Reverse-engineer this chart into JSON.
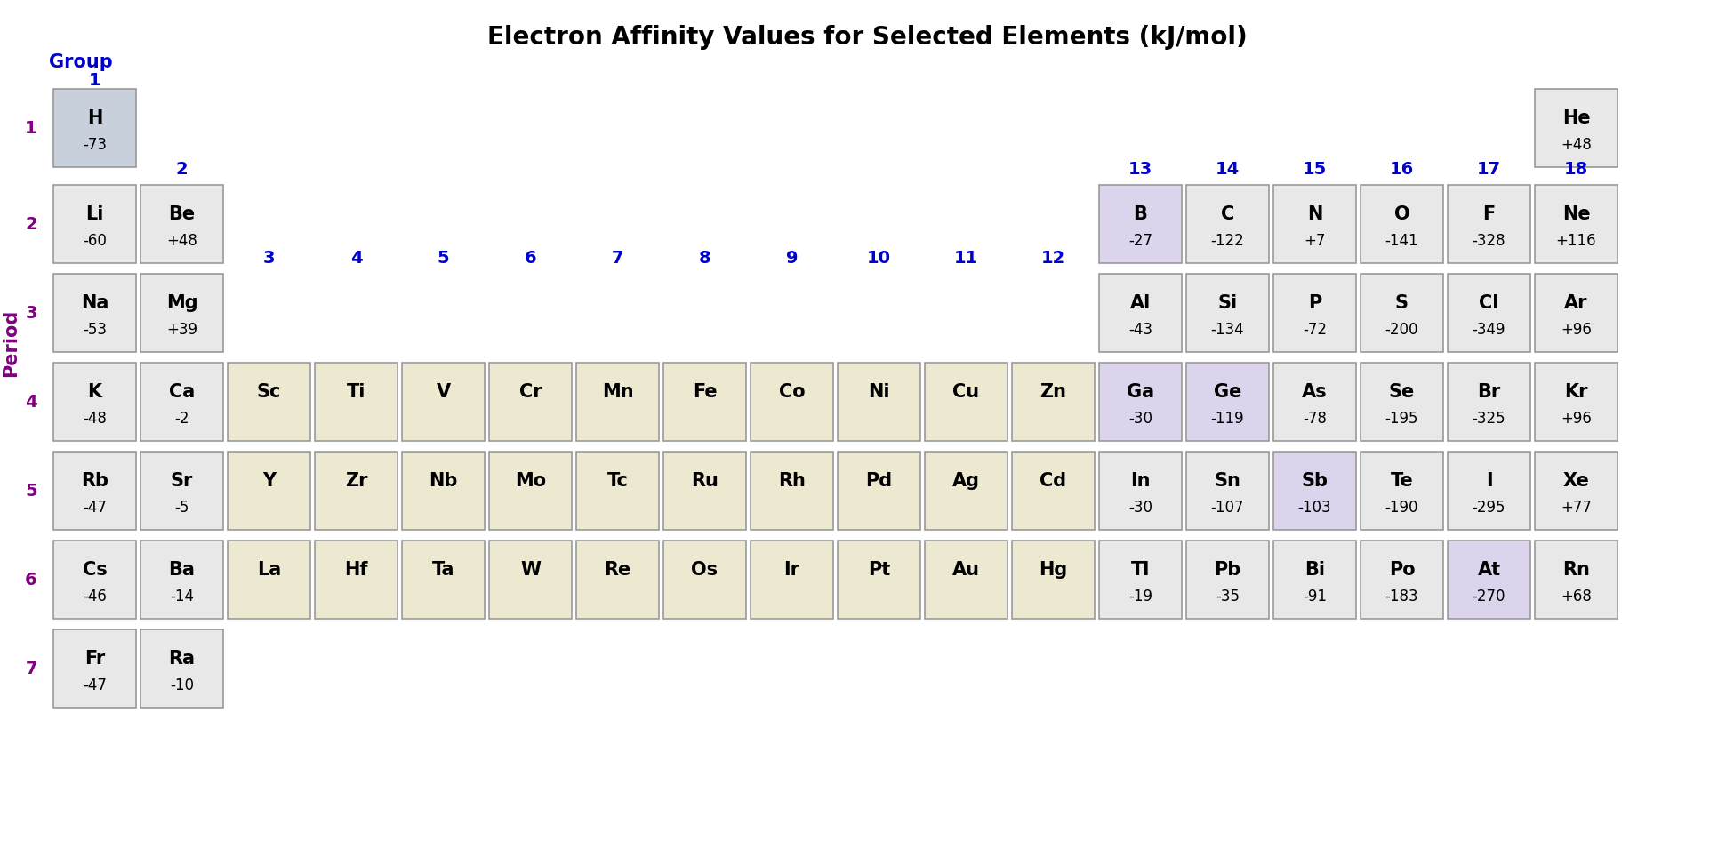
{
  "title": "Electron Affinity Values for Selected Elements (kJ/mol)",
  "title_fontsize": 20,
  "period_label": "Period",
  "group_label": "Group",
  "period_color": "#800080",
  "group_color": "#0000CD",
  "elements": [
    {
      "symbol": "H",
      "value": "-73",
      "period": 1,
      "group": 1,
      "bg": "#c8d0dc"
    },
    {
      "symbol": "He",
      "value": "+48",
      "period": 1,
      "group": 18,
      "bg": "#e8e8e8"
    },
    {
      "symbol": "Li",
      "value": "-60",
      "period": 2,
      "group": 1,
      "bg": "#e8e8e8"
    },
    {
      "symbol": "Be",
      "value": "+48",
      "period": 2,
      "group": 2,
      "bg": "#e8e8e8"
    },
    {
      "symbol": "B",
      "value": "-27",
      "period": 2,
      "group": 13,
      "bg": "#dcd4ec"
    },
    {
      "symbol": "C",
      "value": "-122",
      "period": 2,
      "group": 14,
      "bg": "#e8e8e8"
    },
    {
      "symbol": "N",
      "value": "+7",
      "period": 2,
      "group": 15,
      "bg": "#e8e8e8"
    },
    {
      "symbol": "O",
      "value": "-141",
      "period": 2,
      "group": 16,
      "bg": "#e8e8e8"
    },
    {
      "symbol": "F",
      "value": "-328",
      "period": 2,
      "group": 17,
      "bg": "#e8e8e8"
    },
    {
      "symbol": "Ne",
      "value": "+116",
      "period": 2,
      "group": 18,
      "bg": "#e8e8e8"
    },
    {
      "symbol": "Na",
      "value": "-53",
      "period": 3,
      "group": 1,
      "bg": "#e8e8e8"
    },
    {
      "symbol": "Mg",
      "value": "+39",
      "period": 3,
      "group": 2,
      "bg": "#e8e8e8"
    },
    {
      "symbol": "Al",
      "value": "-43",
      "period": 3,
      "group": 13,
      "bg": "#e8e8e8"
    },
    {
      "symbol": "Si",
      "value": "-134",
      "period": 3,
      "group": 14,
      "bg": "#e8e8e8"
    },
    {
      "symbol": "P",
      "value": "-72",
      "period": 3,
      "group": 15,
      "bg": "#e8e8e8"
    },
    {
      "symbol": "S",
      "value": "-200",
      "period": 3,
      "group": 16,
      "bg": "#e8e8e8"
    },
    {
      "symbol": "Cl",
      "value": "-349",
      "period": 3,
      "group": 17,
      "bg": "#e8e8e8"
    },
    {
      "symbol": "Ar",
      "value": "+96",
      "period": 3,
      "group": 18,
      "bg": "#e8e8e8"
    },
    {
      "symbol": "K",
      "value": "-48",
      "period": 4,
      "group": 1,
      "bg": "#e8e8e8"
    },
    {
      "symbol": "Ca",
      "value": "-2",
      "period": 4,
      "group": 2,
      "bg": "#e8e8e8"
    },
    {
      "symbol": "Sc",
      "value": "",
      "period": 4,
      "group": 3,
      "bg": "#ede8d0"
    },
    {
      "symbol": "Ti",
      "value": "",
      "period": 4,
      "group": 4,
      "bg": "#ede8d0"
    },
    {
      "symbol": "V",
      "value": "",
      "period": 4,
      "group": 5,
      "bg": "#ede8d0"
    },
    {
      "symbol": "Cr",
      "value": "",
      "period": 4,
      "group": 6,
      "bg": "#ede8d0"
    },
    {
      "symbol": "Mn",
      "value": "",
      "period": 4,
      "group": 7,
      "bg": "#ede8d0"
    },
    {
      "symbol": "Fe",
      "value": "",
      "period": 4,
      "group": 8,
      "bg": "#ede8d0"
    },
    {
      "symbol": "Co",
      "value": "",
      "period": 4,
      "group": 9,
      "bg": "#ede8d0"
    },
    {
      "symbol": "Ni",
      "value": "",
      "period": 4,
      "group": 10,
      "bg": "#ede8d0"
    },
    {
      "symbol": "Cu",
      "value": "",
      "period": 4,
      "group": 11,
      "bg": "#ede8d0"
    },
    {
      "symbol": "Zn",
      "value": "",
      "period": 4,
      "group": 12,
      "bg": "#ede8d0"
    },
    {
      "symbol": "Ga",
      "value": "-30",
      "period": 4,
      "group": 13,
      "bg": "#dcd4ec"
    },
    {
      "symbol": "Ge",
      "value": "-119",
      "period": 4,
      "group": 14,
      "bg": "#dcd4ec"
    },
    {
      "symbol": "As",
      "value": "-78",
      "period": 4,
      "group": 15,
      "bg": "#e8e8e8"
    },
    {
      "symbol": "Se",
      "value": "-195",
      "period": 4,
      "group": 16,
      "bg": "#e8e8e8"
    },
    {
      "symbol": "Br",
      "value": "-325",
      "period": 4,
      "group": 17,
      "bg": "#e8e8e8"
    },
    {
      "symbol": "Kr",
      "value": "+96",
      "period": 4,
      "group": 18,
      "bg": "#e8e8e8"
    },
    {
      "symbol": "Rb",
      "value": "-47",
      "period": 5,
      "group": 1,
      "bg": "#e8e8e8"
    },
    {
      "symbol": "Sr",
      "value": "-5",
      "period": 5,
      "group": 2,
      "bg": "#e8e8e8"
    },
    {
      "symbol": "Y",
      "value": "",
      "period": 5,
      "group": 3,
      "bg": "#ede8d0"
    },
    {
      "symbol": "Zr",
      "value": "",
      "period": 5,
      "group": 4,
      "bg": "#ede8d0"
    },
    {
      "symbol": "Nb",
      "value": "",
      "period": 5,
      "group": 5,
      "bg": "#ede8d0"
    },
    {
      "symbol": "Mo",
      "value": "",
      "period": 5,
      "group": 6,
      "bg": "#ede8d0"
    },
    {
      "symbol": "Tc",
      "value": "",
      "period": 5,
      "group": 7,
      "bg": "#ede8d0"
    },
    {
      "symbol": "Ru",
      "value": "",
      "period": 5,
      "group": 8,
      "bg": "#ede8d0"
    },
    {
      "symbol": "Rh",
      "value": "",
      "period": 5,
      "group": 9,
      "bg": "#ede8d0"
    },
    {
      "symbol": "Pd",
      "value": "",
      "period": 5,
      "group": 10,
      "bg": "#ede8d0"
    },
    {
      "symbol": "Ag",
      "value": "",
      "period": 5,
      "group": 11,
      "bg": "#ede8d0"
    },
    {
      "symbol": "Cd",
      "value": "",
      "period": 5,
      "group": 12,
      "bg": "#ede8d0"
    },
    {
      "symbol": "In",
      "value": "-30",
      "period": 5,
      "group": 13,
      "bg": "#e8e8e8"
    },
    {
      "symbol": "Sn",
      "value": "-107",
      "period": 5,
      "group": 14,
      "bg": "#e8e8e8"
    },
    {
      "symbol": "Sb",
      "value": "-103",
      "period": 5,
      "group": 15,
      "bg": "#dcd4ec"
    },
    {
      "symbol": "Te",
      "value": "-190",
      "period": 5,
      "group": 16,
      "bg": "#e8e8e8"
    },
    {
      "symbol": "I",
      "value": "-295",
      "period": 5,
      "group": 17,
      "bg": "#e8e8e8"
    },
    {
      "symbol": "Xe",
      "value": "+77",
      "period": 5,
      "group": 18,
      "bg": "#e8e8e8"
    },
    {
      "symbol": "Cs",
      "value": "-46",
      "period": 6,
      "group": 1,
      "bg": "#e8e8e8"
    },
    {
      "symbol": "Ba",
      "value": "-14",
      "period": 6,
      "group": 2,
      "bg": "#e8e8e8"
    },
    {
      "symbol": "La",
      "value": "",
      "period": 6,
      "group": 3,
      "bg": "#ede8d0"
    },
    {
      "symbol": "Hf",
      "value": "",
      "period": 6,
      "group": 4,
      "bg": "#ede8d0"
    },
    {
      "symbol": "Ta",
      "value": "",
      "period": 6,
      "group": 5,
      "bg": "#ede8d0"
    },
    {
      "symbol": "W",
      "value": "",
      "period": 6,
      "group": 6,
      "bg": "#ede8d0"
    },
    {
      "symbol": "Re",
      "value": "",
      "period": 6,
      "group": 7,
      "bg": "#ede8d0"
    },
    {
      "symbol": "Os",
      "value": "",
      "period": 6,
      "group": 8,
      "bg": "#ede8d0"
    },
    {
      "symbol": "Ir",
      "value": "",
      "period": 6,
      "group": 9,
      "bg": "#ede8d0"
    },
    {
      "symbol": "Pt",
      "value": "",
      "period": 6,
      "group": 10,
      "bg": "#ede8d0"
    },
    {
      "symbol": "Au",
      "value": "",
      "period": 6,
      "group": 11,
      "bg": "#ede8d0"
    },
    {
      "symbol": "Hg",
      "value": "",
      "period": 6,
      "group": 12,
      "bg": "#ede8d0"
    },
    {
      "symbol": "Tl",
      "value": "-19",
      "period": 6,
      "group": 13,
      "bg": "#e8e8e8"
    },
    {
      "symbol": "Pb",
      "value": "-35",
      "period": 6,
      "group": 14,
      "bg": "#e8e8e8"
    },
    {
      "symbol": "Bi",
      "value": "-91",
      "period": 6,
      "group": 15,
      "bg": "#e8e8e8"
    },
    {
      "symbol": "Po",
      "value": "-183",
      "period": 6,
      "group": 16,
      "bg": "#e8e8e8"
    },
    {
      "symbol": "At",
      "value": "-270",
      "period": 6,
      "group": 17,
      "bg": "#dcd4ec"
    },
    {
      "symbol": "Rn",
      "value": "+68",
      "period": 6,
      "group": 18,
      "bg": "#e8e8e8"
    },
    {
      "symbol": "Fr",
      "value": "-47",
      "period": 7,
      "group": 1,
      "bg": "#e8e8e8"
    },
    {
      "symbol": "Ra",
      "value": "-10",
      "period": 7,
      "group": 2,
      "bg": "#e8e8e8"
    }
  ],
  "cell_border_color": "#999999",
  "symbol_fontsize": 15,
  "value_fontsize": 12,
  "text_color": "#000000",
  "bg_color": "#ffffff"
}
